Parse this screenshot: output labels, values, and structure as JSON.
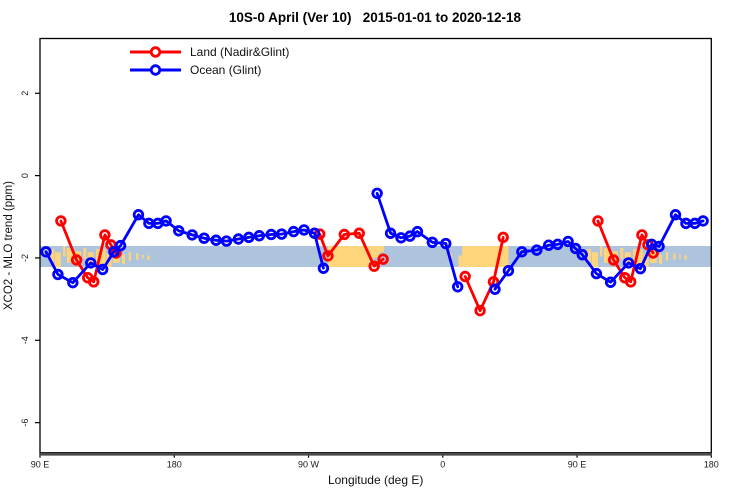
{
  "title": "10S-0 April (Ver 10)   2015-01-01 to 2020-12-18",
  "chart_data": {
    "type": "line",
    "title": "10S-0 April (Ver 10)   2015-01-01 to 2020-12-18",
    "xlabel": "Longitude (deg E)",
    "ylabel": "XCO2 - MLO trend (ppm)",
    "xlim": [
      90,
      540
    ],
    "ylim": [
      -6.73,
      3.33
    ],
    "grid": "off",
    "legend_position": "top-left-inside",
    "x_ticks": [
      {
        "value": 90,
        "label": "90 E"
      },
      {
        "value": 180,
        "label": "180"
      },
      {
        "value": 270,
        "label": "90 W"
      },
      {
        "value": 360,
        "label": "0"
      },
      {
        "value": 450,
        "label": "90 E"
      },
      {
        "value": 540,
        "label": "180"
      }
    ],
    "y_ticks": [
      {
        "value": 2,
        "label": "2"
      },
      {
        "value": 0,
        "label": "0"
      },
      {
        "value": -2,
        "label": "-2"
      },
      {
        "value": -4,
        "label": "-4"
      },
      {
        "value": -6,
        "label": "-6"
      }
    ],
    "legend": [
      {
        "label": "Land (Nadir&Glint)",
        "color": "#ff0000"
      },
      {
        "label": "Ocean (Glint)",
        "color": "#0000ff"
      }
    ],
    "map_band": {
      "description": "world map strip for latitude band 10S-0 drawn across the plot",
      "y_top": -1.71,
      "y_bottom": -2.22,
      "ocean_color": "#aec3dc",
      "land_color": "#ffd57c",
      "land_patches": [
        {
          "from": 96.5,
          "to": 99.5,
          "f0": 0.15,
          "f1": 0.75
        },
        {
          "from": 100,
          "to": 104,
          "f0": 0.3,
          "f1": 1.0
        },
        {
          "from": 105.5,
          "to": 107,
          "f0": 0.0,
          "f1": 0.5
        },
        {
          "from": 108,
          "to": 112.5,
          "f0": 0.1,
          "f1": 0.8
        },
        {
          "from": 113.5,
          "to": 117.5,
          "f0": 0.25,
          "f1": 0.95
        },
        {
          "from": 119,
          "to": 121,
          "f0": 0.1,
          "f1": 0.6
        },
        {
          "from": 122,
          "to": 126,
          "f0": 0.3,
          "f1": 0.9
        },
        {
          "from": 127.5,
          "to": 134,
          "f0": 0.15,
          "f1": 0.85
        },
        {
          "from": 134.5,
          "to": 138,
          "f0": 0.35,
          "f1": 1.0
        },
        {
          "from": 139,
          "to": 143.5,
          "f0": 0.2,
          "f1": 0.8
        },
        {
          "from": 145,
          "to": 147,
          "f0": 0.4,
          "f1": 0.85
        },
        {
          "from": 149.5,
          "to": 151,
          "f0": 0.3,
          "f1": 0.7
        },
        {
          "from": 154.5,
          "to": 156,
          "f0": 0.35,
          "f1": 0.65
        },
        {
          "from": 158.5,
          "to": 159.5,
          "f0": 0.4,
          "f1": 0.6
        },
        {
          "from": 162,
          "to": 163.5,
          "f0": 0.45,
          "f1": 0.65
        },
        {
          "from": 283,
          "to": 313.5,
          "f0": 0.0,
          "f1": 1.0
        },
        {
          "from": 313.5,
          "to": 317.5,
          "f0": 0.0,
          "f1": 0.55
        },
        {
          "from": 317.5,
          "to": 320.5,
          "f0": 0.0,
          "f1": 0.3
        },
        {
          "from": 364.5,
          "to": 366,
          "f0": 0.35,
          "f1": 0.65
        },
        {
          "from": 370.5,
          "to": 373,
          "f0": 0.45,
          "f1": 1.0
        },
        {
          "from": 373,
          "to": 404,
          "f0": 0.0,
          "f1": 1.0
        },
        {
          "from": 456.5,
          "to": 459.5,
          "f0": 0.15,
          "f1": 0.75
        },
        {
          "from": 460,
          "to": 464,
          "f0": 0.3,
          "f1": 1.0
        },
        {
          "from": 465.5,
          "to": 467,
          "f0": 0.0,
          "f1": 0.5
        },
        {
          "from": 468,
          "to": 472.5,
          "f0": 0.1,
          "f1": 0.8
        },
        {
          "from": 473.5,
          "to": 477.5,
          "f0": 0.25,
          "f1": 0.95
        },
        {
          "from": 479,
          "to": 481,
          "f0": 0.1,
          "f1": 0.6
        },
        {
          "from": 482,
          "to": 486,
          "f0": 0.3,
          "f1": 0.9
        },
        {
          "from": 487.5,
          "to": 494,
          "f0": 0.15,
          "f1": 0.85
        },
        {
          "from": 494.5,
          "to": 498,
          "f0": 0.35,
          "f1": 1.0
        },
        {
          "from": 499,
          "to": 503.5,
          "f0": 0.2,
          "f1": 0.8
        },
        {
          "from": 505,
          "to": 507,
          "f0": 0.4,
          "f1": 0.85
        },
        {
          "from": 509.5,
          "to": 511,
          "f0": 0.3,
          "f1": 0.7
        },
        {
          "from": 514.5,
          "to": 516,
          "f0": 0.35,
          "f1": 0.65
        },
        {
          "from": 518.5,
          "to": 519.5,
          "f0": 0.4,
          "f1": 0.6
        },
        {
          "from": 522,
          "to": 523.5,
          "f0": 0.45,
          "f1": 0.65
        }
      ]
    },
    "series": [
      {
        "name": "Land (Nadir&Glint)",
        "color": "#ff0000",
        "marker": "open-circle",
        "segments": [
          [
            [
              104,
              -1.1
            ],
            [
              114.5,
              -2.05
            ],
            [
              122,
              -2.48
            ],
            [
              126,
              -2.58
            ],
            [
              133.5,
              -1.44
            ],
            [
              137.5,
              -1.68
            ],
            [
              141,
              -1.88
            ]
          ],
          [
            [
              277.5,
              -1.42
            ],
            [
              283,
              -1.95
            ],
            [
              294,
              -1.43
            ],
            [
              304,
              -1.4
            ],
            [
              314,
              -2.2
            ],
            [
              320,
              -2.03
            ]
          ],
          [
            [
              375,
              -2.45
            ],
            [
              385,
              -3.28
            ],
            [
              394,
              -2.58
            ],
            [
              400.5,
              -1.5
            ]
          ],
          [
            [
              464,
              -1.1
            ],
            [
              474.5,
              -2.05
            ],
            [
              482,
              -2.48
            ],
            [
              486,
              -2.58
            ],
            [
              493.5,
              -1.44
            ],
            [
              497.5,
              -1.68
            ],
            [
              501,
              -1.88
            ]
          ]
        ]
      },
      {
        "name": "Ocean (Glint)",
        "color": "#0000ff",
        "marker": "open-circle",
        "segments": [
          [
            [
              94,
              -1.85
            ],
            [
              102,
              -2.4
            ],
            [
              112,
              -2.6
            ],
            [
              124,
              -2.12
            ],
            [
              132,
              -2.28
            ],
            [
              139.5,
              -1.85
            ],
            [
              144,
              -1.7
            ],
            [
              156,
              -0.95
            ],
            [
              163,
              -1.16
            ],
            [
              169,
              -1.16
            ],
            [
              174.5,
              -1.1
            ],
            [
              183,
              -1.34
            ],
            [
              192,
              -1.44
            ],
            [
              200,
              -1.52
            ],
            [
              208,
              -1.57
            ],
            [
              215,
              -1.59
            ],
            [
              223,
              -1.54
            ],
            [
              230,
              -1.5
            ],
            [
              237,
              -1.46
            ],
            [
              245,
              -1.43
            ],
            [
              252,
              -1.42
            ],
            [
              260,
              -1.36
            ],
            [
              267,
              -1.32
            ],
            [
              274,
              -1.4
            ],
            [
              280,
              -2.25
            ]
          ],
          [
            [
              316,
              -0.43
            ],
            [
              325,
              -1.4
            ],
            [
              332,
              -1.51
            ],
            [
              338,
              -1.47
            ],
            [
              343,
              -1.36
            ],
            [
              353,
              -1.62
            ],
            [
              362,
              -1.65
            ],
            [
              370,
              -2.7
            ]
          ],
          [
            [
              395,
              -2.76
            ],
            [
              404,
              -2.31
            ],
            [
              413,
              -1.85
            ],
            [
              423,
              -1.81
            ],
            [
              431,
              -1.69
            ],
            [
              437,
              -1.67
            ],
            [
              444,
              -1.6
            ],
            [
              449,
              -1.77
            ],
            [
              453.5,
              -1.92
            ],
            [
              463,
              -2.38
            ],
            [
              472.5,
              -2.59
            ],
            [
              484.5,
              -2.12
            ],
            [
              492.5,
              -2.26
            ],
            [
              500,
              -1.67
            ],
            [
              505,
              -1.72
            ],
            [
              516,
              -0.95
            ],
            [
              523,
              -1.16
            ],
            [
              529,
              -1.16
            ],
            [
              534.5,
              -1.1
            ]
          ]
        ]
      }
    ]
  }
}
